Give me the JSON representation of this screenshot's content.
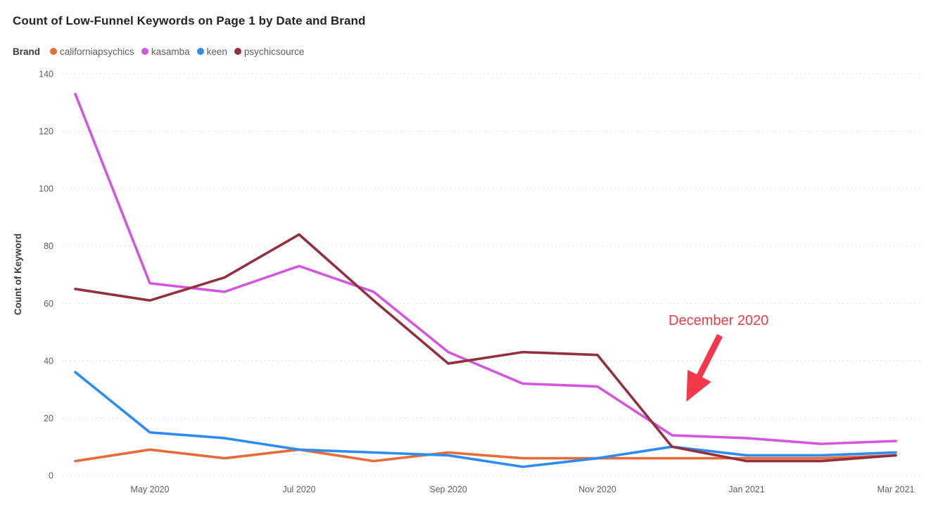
{
  "title": "Count of Low-Funnel Keywords on Page 1 by Date and Brand",
  "legend": {
    "label": "Brand"
  },
  "annotation": {
    "text": "December 2020",
    "color": "#F2394C",
    "points_to_month": "Dec 2020"
  },
  "chart_data": {
    "type": "line",
    "x": [
      "Apr 2020",
      "May 2020",
      "Jun 2020",
      "Jul 2020",
      "Aug 2020",
      "Sep 2020",
      "Oct 2020",
      "Nov 2020",
      "Dec 2020",
      "Jan 2021",
      "Feb 2021",
      "Mar 2021"
    ],
    "x_tick_labels": [
      "May 2020",
      "Jul 2020",
      "Sep 2020",
      "Nov 2020",
      "Jan 2021",
      "Mar 2021"
    ],
    "x_tick_month_indexes": [
      1,
      3,
      5,
      7,
      9,
      11
    ],
    "series": [
      {
        "name": "californiapsychics",
        "color": "#E66C37",
        "values": [
          5,
          9,
          6,
          9,
          5,
          8,
          6,
          6,
          6,
          6,
          6,
          7
        ]
      },
      {
        "name": "kasamba",
        "color": "#D357DE",
        "values": [
          133,
          67,
          64,
          73,
          64,
          43,
          32,
          31,
          14,
          13,
          11,
          12
        ]
      },
      {
        "name": "keen",
        "color": "#2E8CF0",
        "values": [
          36,
          15,
          13,
          9,
          8,
          7,
          3,
          6,
          10,
          7,
          7,
          8
        ]
      },
      {
        "name": "psychicsource",
        "color": "#93303E",
        "values": [
          65,
          61,
          69,
          84,
          61,
          39,
          43,
          42,
          10,
          5,
          5,
          7
        ]
      }
    ],
    "xlabel": "",
    "ylabel": "Count of Keyword",
    "ylim": [
      0,
      140
    ],
    "y_ticks": [
      0,
      20,
      40,
      60,
      80,
      100,
      120,
      140
    ],
    "grid": "dotted-horizontal",
    "legend_position": "top-left",
    "gridline_color": "#C8C8C8",
    "background": "#FFFFFF"
  }
}
